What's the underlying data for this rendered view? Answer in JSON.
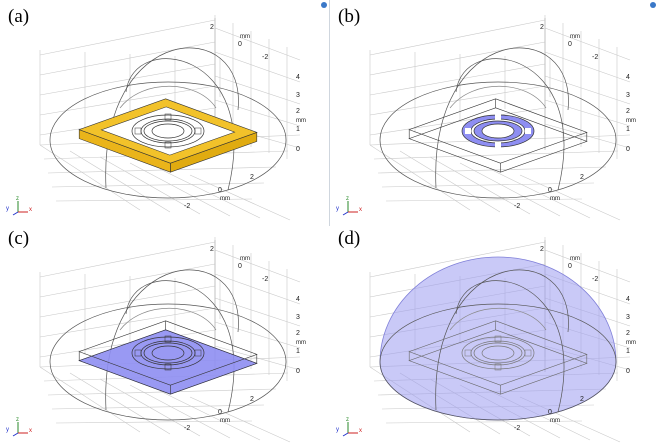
{
  "panels": [
    {
      "label": "(a)",
      "highlight": "substrate-top",
      "color": "#f2c22a"
    },
    {
      "label": "(b)",
      "highlight": "rings",
      "color": "#8e8ef2"
    },
    {
      "label": "(c)",
      "highlight": "bottom-face",
      "color": "#8e8ef2"
    },
    {
      "label": "(d)",
      "highlight": "air-dome",
      "color": "#9d9df0"
    }
  ],
  "axes": {
    "unit": "mm",
    "x_ticks": [
      "-2",
      "0",
      "2"
    ],
    "y_ticks": [
      "2",
      "0",
      "-2"
    ],
    "z_ticks": [
      "0",
      "1",
      "2",
      "3",
      "4"
    ]
  },
  "triad": {
    "y": "y",
    "z": "z",
    "x": "x"
  }
}
